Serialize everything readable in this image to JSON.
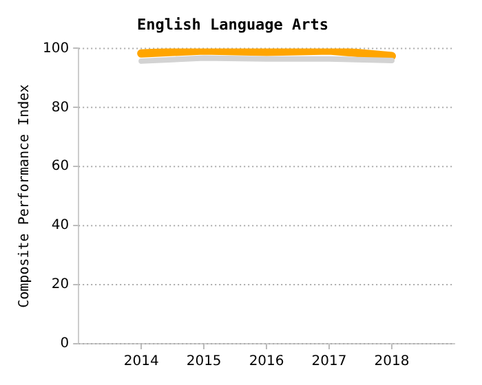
{
  "chart_data": {
    "type": "line",
    "title": "English Language Arts",
    "ylabel": "Composite Performance Index",
    "x": [
      2014,
      2015,
      2016,
      2017,
      2018
    ],
    "xlim": [
      2013,
      2019
    ],
    "xticks": [
      2014,
      2015,
      2016,
      2017,
      2018
    ],
    "ylim": [
      0,
      100
    ],
    "yticks": [
      0,
      20,
      40,
      60,
      80,
      100
    ],
    "grid": "y",
    "legend": false,
    "series": [
      {
        "color": "#d3d3d3",
        "values": [
          95.7,
          96.7,
          96.4,
          96.4,
          95.9
        ]
      },
      {
        "color": "#ffa500",
        "values": [
          98.3,
          99.3,
          98.8,
          99.3,
          97.4
        ]
      }
    ]
  }
}
